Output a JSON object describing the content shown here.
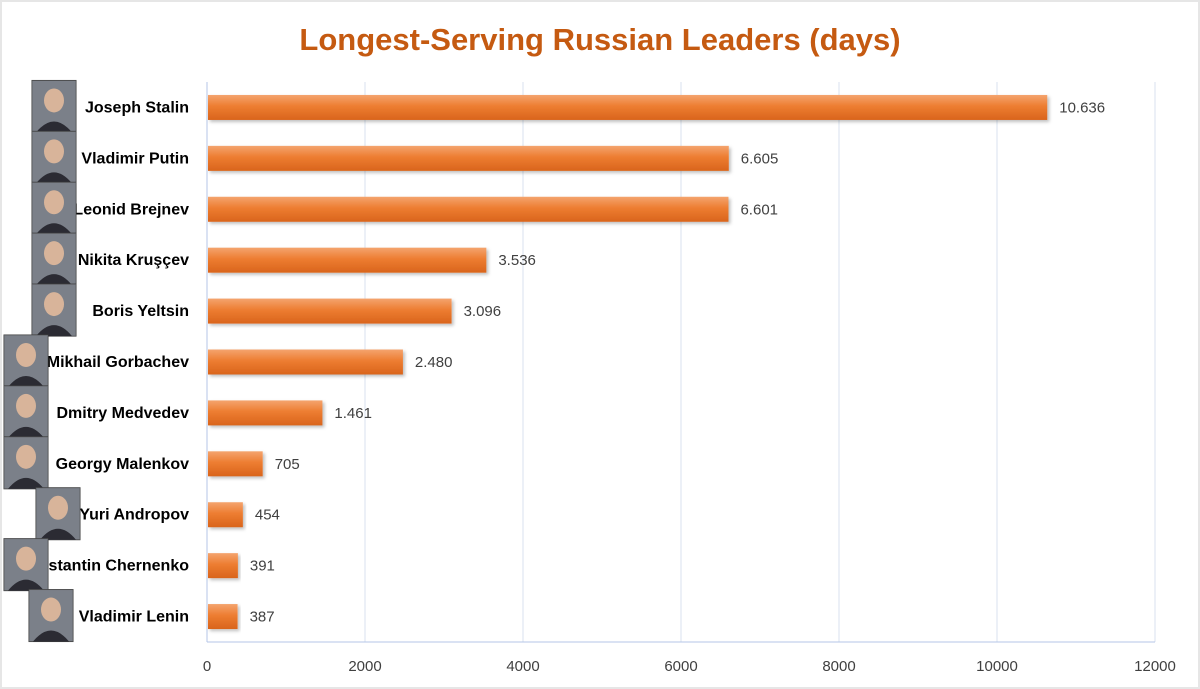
{
  "chart_data": {
    "type": "bar",
    "orientation": "horizontal",
    "title": "Longest-Serving Russian Leaders (days)",
    "categories": [
      "Joseph Stalin",
      "Vladimir Putin",
      "Leonid Brejnev",
      "Nikita Kruşçev",
      "Boris Yeltsin",
      "Mikhail Gorbachev",
      "Dmitry Medvedev",
      "Georgy Malenkov",
      "Yuri Andropov",
      "Konstantin Chernenko",
      "Vladimir Lenin"
    ],
    "values": [
      10636,
      6605,
      6601,
      3536,
      3096,
      2480,
      1461,
      705,
      454,
      391,
      387
    ],
    "data_labels": [
      "10.636",
      "6.605",
      "6.601",
      "3.536",
      "3.096",
      "2.480",
      "1.461",
      "705",
      "454",
      "391",
      "387"
    ],
    "x_ticks": [
      "0",
      "2000",
      "4000",
      "6000",
      "8000",
      "10000",
      "12000"
    ],
    "xlim": [
      0,
      12000
    ],
    "xlabel": "",
    "ylabel": "",
    "grid": "vertical",
    "legend": "none",
    "portraits": "one portrait photo beside each leader name"
  },
  "colors": {
    "title": "#c55a11",
    "bar": "#ed7d31",
    "bar_top": "#f4a46e",
    "bar_bottom": "#d9641c",
    "grid": "#d9e2ef",
    "axis": "#b4c6e7",
    "label": "#000000",
    "value_label": "#404040"
  }
}
